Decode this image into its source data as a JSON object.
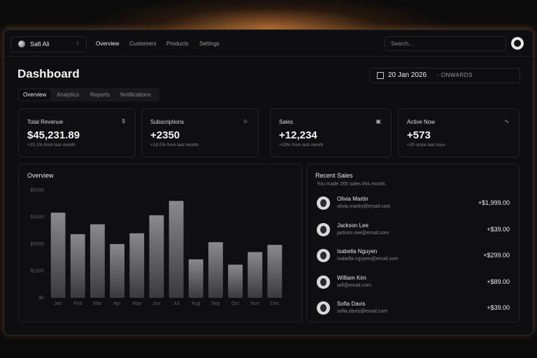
{
  "nav": {
    "user": "Safi Ali",
    "links": [
      "Overview",
      "Customers",
      "Products",
      "Settings"
    ],
    "search": "Search..."
  },
  "header": {
    "title": "Dashboard",
    "date": "20 Jan 2026",
    "date_suffix": "- ONWARDS"
  },
  "tabs": [
    "Overview",
    "Analytics",
    "Reports",
    "Notifications"
  ],
  "cards": [
    {
      "title": "Total Revenue",
      "value": "$45,231.89",
      "note": "+20.1% from last month"
    },
    {
      "title": "Subscriptions",
      "value": "+2350",
      "note": "+18.0% from last month"
    },
    {
      "title": "Sales",
      "value": "+12,234",
      "note": "+19% from last month"
    },
    {
      "title": "Active Now",
      "value": "+573",
      "note": "+20 since last hour"
    }
  ],
  "chart_data": {
    "type": "bar",
    "title": "Overview",
    "categories": [
      "Jan",
      "Feb",
      "Mar",
      "Apr",
      "May",
      "Jun",
      "Jul",
      "Aug",
      "Sep",
      "Oct",
      "Nov",
      "Dec"
    ],
    "values": [
      4750,
      3550,
      4100,
      3000,
      3600,
      4600,
      5400,
      2150,
      3100,
      1850,
      2550,
      2950
    ],
    "ylim": [
      0,
      6000
    ],
    "yticks": [
      {
        "value": 0,
        "label": "$0"
      },
      {
        "value": 1500,
        "label": "$1500"
      },
      {
        "value": 3000,
        "label": "$3000"
      },
      {
        "value": 4500,
        "label": "$4500"
      },
      {
        "value": 6000,
        "label": "$6000"
      }
    ],
    "grid": false
  },
  "recent_sales": {
    "title": "Recent Sales",
    "subtitle": "You made 265 sales this month.",
    "items": [
      {
        "name": "Olivia Martin",
        "email": "olivia.martin@email.com",
        "amount": "+$1,999.00"
      },
      {
        "name": "Jackson Lee",
        "email": "jackson.lee@email.com",
        "amount": "+$39.00"
      },
      {
        "name": "Isabella Nguyen",
        "email": "isabella.nguyen@email.com",
        "amount": "+$299.00"
      },
      {
        "name": "William Kim",
        "email": "will@email.com",
        "amount": "+$89.00"
      },
      {
        "name": "Sofia Davis",
        "email": "sofia.davis@email.com",
        "amount": "+$39.00"
      }
    ]
  }
}
